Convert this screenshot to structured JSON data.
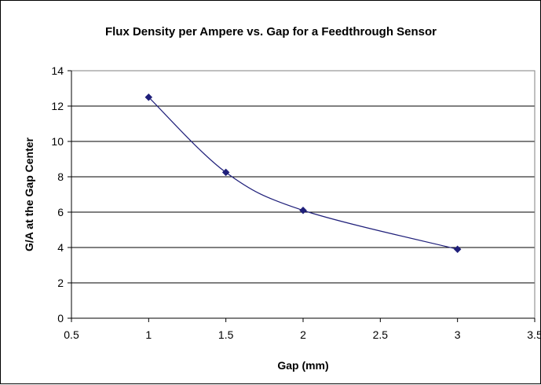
{
  "chart_data": {
    "type": "scatter",
    "title": "Flux Density per Ampere vs. Gap for a Feedthrough Sensor",
    "xlabel": "Gap (mm)",
    "ylabel": "G/A at the Gap Center",
    "xlim": [
      0.5,
      3.5
    ],
    "ylim": [
      0,
      14
    ],
    "x_ticks": [
      "0.5",
      "1",
      "1.5",
      "2",
      "2.5",
      "3",
      "3.5"
    ],
    "y_ticks": [
      "0",
      "2",
      "4",
      "6",
      "8",
      "10",
      "12",
      "14"
    ],
    "grid": "horizontal",
    "legend": "none",
    "smoothed_line": true,
    "series": [
      {
        "color": "#1F1F7A",
        "marker": "diamond",
        "x": [
          1,
          1.5,
          2,
          3
        ],
        "y": [
          12.5,
          8.25,
          6.1,
          3.9
        ]
      }
    ]
  }
}
